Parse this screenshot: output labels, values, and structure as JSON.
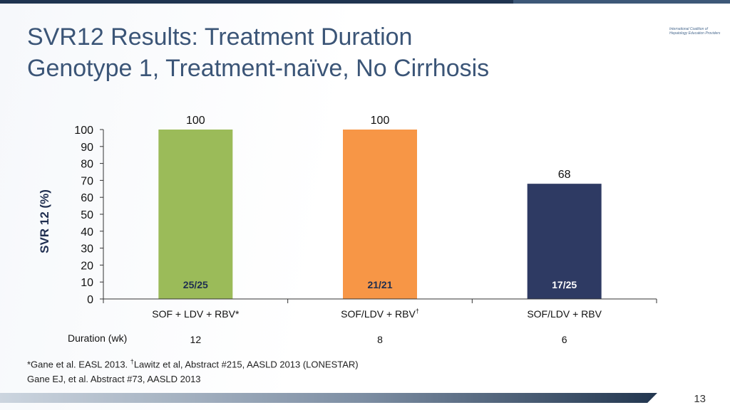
{
  "slide": {
    "title_line1": "SVR12 Results: Treatment Duration",
    "title_line2": "Genotype 1, Treatment-naïve, No Cirrhosis",
    "logo_line1": "International Coalition of",
    "logo_line2": "Hepatology Education Providers",
    "footnote1_a": "*Gane et al. EASL 2013. ",
    "footnote1_dagger": "†",
    "footnote1_b": "Lawitz et al, Abstract #215, AASLD 2013 (LONESTAR)",
    "footnote2": "Gane EJ, et al. Abstract #73, AASLD 2013",
    "page_number": "13"
  },
  "chart_data": {
    "type": "bar",
    "ylabel": "SVR 12 (%)",
    "ylim": [
      0,
      100
    ],
    "yticks": [
      0,
      10,
      20,
      30,
      40,
      50,
      60,
      70,
      80,
      90,
      100
    ],
    "categories": [
      "SOF + LDV + RBV*",
      "SOF/LDV + RBV†",
      "SOF/LDV + RBV"
    ],
    "values": [
      100,
      100,
      68
    ],
    "value_labels": [
      "100",
      "100",
      "68"
    ],
    "inner_labels": [
      "25/25",
      "21/21",
      "17/25"
    ],
    "bar_colors": [
      "#9bbb59",
      "#f79646",
      "#2e3a63"
    ],
    "inner_label_colors": [
      "#1f2e50",
      "#1f2e50",
      "#ffffff"
    ],
    "duration_label": "Duration (wk)",
    "durations": [
      "12",
      "8",
      "6"
    ]
  }
}
